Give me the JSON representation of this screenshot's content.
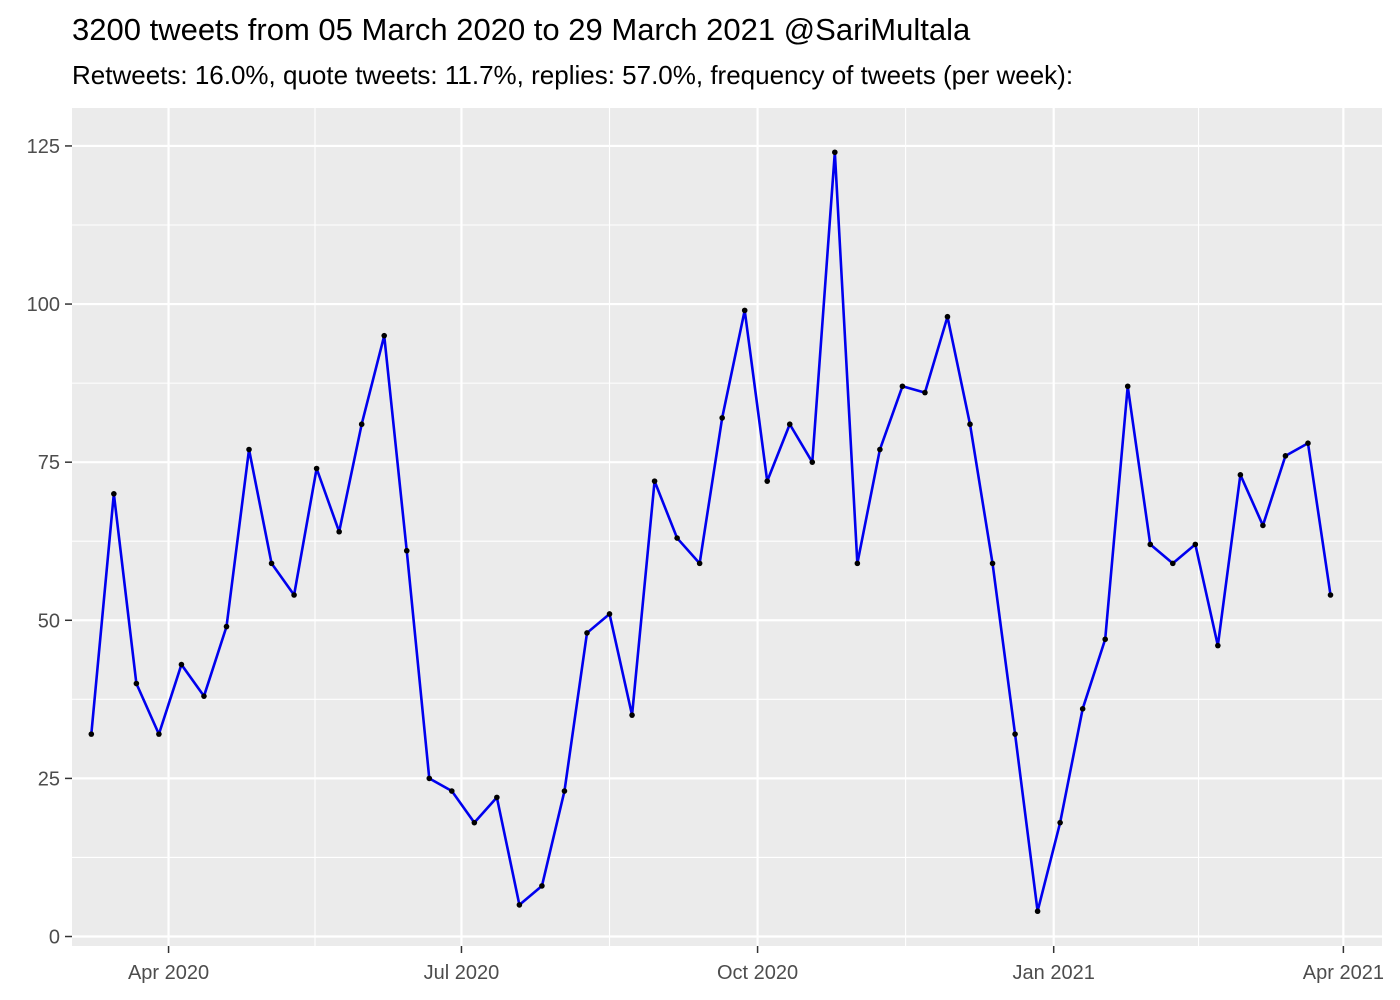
{
  "chart_data": {
    "type": "line",
    "title": "3200 tweets from 05 March 2020 to 29 March 2021 @SariMultala",
    "subtitle": "Retweets: 16.0%, quote tweets: 11.7%, replies: 57.0%, frequency of tweets (per week):",
    "xlabel": "",
    "ylabel": "",
    "x_tick_labels": [
      "Apr 2020",
      "Jul 2020",
      "Oct 2020",
      "Jan 2021",
      "Apr 2021"
    ],
    "x_tick_dates": [
      "2020-04-01",
      "2020-07-01",
      "2020-10-01",
      "2021-01-01",
      "2021-04-01"
    ],
    "y_ticks": [
      0,
      25,
      50,
      75,
      100,
      125
    ],
    "xlim": [
      "2020-03-02",
      "2021-04-13"
    ],
    "ylim": [
      -1.5,
      131
    ],
    "grid": true,
    "colors": {
      "line": "#0000ee",
      "point": "#000000",
      "panel": "#ebebeb",
      "grid": "#ffffff"
    },
    "series": [
      {
        "x": [
          "2020-03-08",
          "2020-03-15",
          "2020-03-22",
          "2020-03-29",
          "2020-04-05",
          "2020-04-12",
          "2020-04-19",
          "2020-04-26",
          "2020-05-03",
          "2020-05-10",
          "2020-05-17",
          "2020-05-24",
          "2020-05-31",
          "2020-06-07",
          "2020-06-14",
          "2020-06-21",
          "2020-06-28",
          "2020-07-05",
          "2020-07-12",
          "2020-07-19",
          "2020-07-26",
          "2020-08-02",
          "2020-08-09",
          "2020-08-16",
          "2020-08-23",
          "2020-08-30",
          "2020-09-06",
          "2020-09-13",
          "2020-09-20",
          "2020-09-27",
          "2020-10-04",
          "2020-10-11",
          "2020-10-18",
          "2020-10-25",
          "2020-11-01",
          "2020-11-08",
          "2020-11-15",
          "2020-11-22",
          "2020-11-29",
          "2020-12-06",
          "2020-12-13",
          "2020-12-20",
          "2020-12-27",
          "2021-01-03",
          "2021-01-10",
          "2021-01-17",
          "2021-01-24",
          "2021-01-31",
          "2021-02-07",
          "2021-02-14",
          "2021-02-21",
          "2021-02-28",
          "2021-03-07",
          "2021-03-14",
          "2021-03-21",
          "2021-03-28"
        ],
        "values": [
          32,
          70,
          40,
          32,
          43,
          38,
          49,
          77,
          59,
          54,
          74,
          64,
          81,
          95,
          61,
          25,
          23,
          18,
          22,
          5,
          8,
          23,
          48,
          51,
          35,
          72,
          63,
          59,
          82,
          99,
          72,
          81,
          75,
          124,
          59,
          77,
          87,
          86,
          98,
          81,
          59,
          32,
          4,
          18,
          36,
          47,
          87,
          62,
          59,
          62,
          46,
          73,
          65,
          76,
          78,
          54
        ]
      }
    ]
  }
}
